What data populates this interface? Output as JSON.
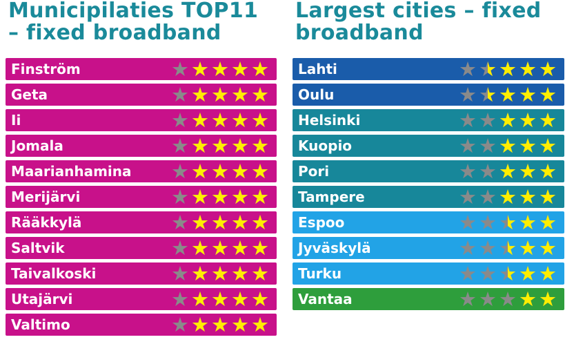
{
  "colors": {
    "title": "#1a8a9a",
    "star_on": "#ffee00",
    "star_off": "#8a8a8a",
    "row_magenta": "#c8118a",
    "row_blue": "#1a5caa",
    "row_teal": "#17879a",
    "row_light_blue": "#22a3e6",
    "row_green": "#2e9e3c"
  },
  "left": {
    "title_lines": [
      "Municipilaties TOP11",
      "– fixed broadband"
    ],
    "rows": [
      {
        "name": "Finström",
        "rating": 4,
        "color": "row_magenta"
      },
      {
        "name": "Geta",
        "rating": 4,
        "color": "row_magenta"
      },
      {
        "name": "Ii",
        "rating": 4,
        "color": "row_magenta"
      },
      {
        "name": "Jomala",
        "rating": 4,
        "color": "row_magenta"
      },
      {
        "name": "Maarianhamina",
        "rating": 4,
        "color": "row_magenta"
      },
      {
        "name": "Merijärvi",
        "rating": 4,
        "color": "row_magenta"
      },
      {
        "name": "Rääkkylä",
        "rating": 4,
        "color": "row_magenta"
      },
      {
        "name": "Saltvik",
        "rating": 4,
        "color": "row_magenta"
      },
      {
        "name": "Taivalkoski",
        "rating": 4,
        "color": "row_magenta"
      },
      {
        "name": "Utajärvi",
        "rating": 4,
        "color": "row_magenta"
      },
      {
        "name": "Valtimo",
        "rating": 4,
        "color": "row_magenta"
      }
    ]
  },
  "right": {
    "title_lines": [
      "Largest cities – fixed",
      "broadband"
    ],
    "rows": [
      {
        "name": "Lahti",
        "rating": 3.5,
        "color": "row_blue"
      },
      {
        "name": "Oulu",
        "rating": 3.5,
        "color": "row_blue"
      },
      {
        "name": "Helsinki",
        "rating": 3,
        "color": "row_teal"
      },
      {
        "name": "Kuopio",
        "rating": 3,
        "color": "row_teal"
      },
      {
        "name": "Pori",
        "rating": 3,
        "color": "row_teal"
      },
      {
        "name": "Tampere",
        "rating": 3,
        "color": "row_teal"
      },
      {
        "name": "Espoo",
        "rating": 2.5,
        "color": "row_light_blue"
      },
      {
        "name": "Jyväskylä",
        "rating": 2.5,
        "color": "row_light_blue"
      },
      {
        "name": "Turku",
        "rating": 2.5,
        "color": "row_light_blue"
      },
      {
        "name": "Vantaa",
        "rating": 2,
        "color": "row_green"
      }
    ],
    "stars_total": 5
  },
  "star_glyph": "★"
}
